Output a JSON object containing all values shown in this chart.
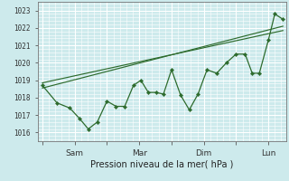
{
  "bg_color": "#cdeaec",
  "grid_color": "#ffffff",
  "line_color": "#2d6b2d",
  "ylim": [
    1015.5,
    1023.5
  ],
  "yticks": [
    1016,
    1017,
    1018,
    1019,
    1020,
    1021,
    1022,
    1023
  ],
  "xlabel": "Pression niveau de la mer( hPa )",
  "xtick_positions": [
    0,
    1,
    2,
    3,
    4,
    5,
    6,
    7
  ],
  "xtick_labels": [
    "",
    "Sam",
    "",
    "Mar",
    "",
    "Dim",
    "",
    "Lun"
  ],
  "xlim": [
    -0.15,
    7.55
  ],
  "x_data": [
    0,
    0.45,
    0.85,
    1.15,
    1.42,
    1.7,
    2.0,
    2.28,
    2.55,
    2.82,
    3.05,
    3.28,
    3.52,
    3.75,
    4.0,
    4.28,
    4.55,
    4.82,
    5.1,
    5.4,
    5.7,
    6.0,
    6.28,
    6.5,
    6.72,
    7.0,
    7.2,
    7.45
  ],
  "y_data": [
    1018.7,
    1017.7,
    1017.4,
    1016.8,
    1016.2,
    1016.6,
    1017.8,
    1017.5,
    1017.5,
    1018.7,
    1019.0,
    1018.3,
    1018.3,
    1018.2,
    1019.6,
    1018.15,
    1017.3,
    1018.2,
    1019.6,
    1019.4,
    1020.0,
    1020.5,
    1020.5,
    1019.4,
    1019.4,
    1021.3,
    1022.8,
    1022.5
  ],
  "trend1_x": [
    0,
    7.45
  ],
  "trend1_y": [
    1018.55,
    1022.1
  ],
  "trend2_x": [
    0,
    7.45
  ],
  "trend2_y": [
    1018.85,
    1021.85
  ],
  "figsize": [
    3.2,
    2.0
  ],
  "dpi": 100
}
